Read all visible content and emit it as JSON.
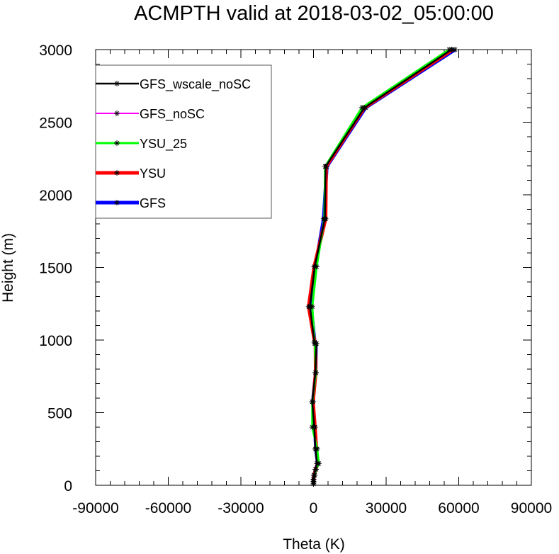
{
  "chart_data": {
    "type": "line",
    "title": "ACMPTH valid at 2018-03-02_05:00:00",
    "xlabel": "Theta (K)",
    "ylabel": "Height (m)",
    "xlim": [
      -90000,
      90000
    ],
    "ylim": [
      0,
      3000
    ],
    "x_ticks": [
      -90000,
      -60000,
      -30000,
      0,
      30000,
      60000,
      90000
    ],
    "y_ticks": [
      0,
      500,
      1000,
      1500,
      2000,
      2500,
      3000
    ],
    "x_tick_labels": [
      "-90000",
      "-60000",
      "-30000",
      "0",
      "30000",
      "60000",
      "90000"
    ],
    "y_tick_labels": [
      "0",
      "500",
      "1000",
      "1500",
      "2000",
      "2500",
      "3000"
    ],
    "legend_position": "top-left",
    "series": [
      {
        "name": "GFS_wscale_noSC",
        "color": "#000000",
        "width": 2.5,
        "x": [
          0,
          0,
          0,
          200,
          800,
          1500,
          800,
          300,
          -500,
          800,
          1200,
          400,
          -1500,
          500,
          4700,
          5000,
          21000,
          57000
        ],
        "y": [
          10,
          25,
          40,
          70,
          110,
          150,
          250,
          400,
          575,
          775,
          975,
          985,
          1230,
          1505,
          1835,
          2195,
          2600,
          3000
        ]
      },
      {
        "name": "GFS_noSC",
        "color": "#ff00ff",
        "width": 2,
        "x": [
          0,
          0,
          0,
          200,
          800,
          1500,
          800,
          300,
          -500,
          800,
          1200,
          400,
          -1500,
          500,
          4700,
          5000,
          21000,
          57000
        ],
        "y": [
          10,
          25,
          40,
          70,
          110,
          150,
          250,
          400,
          575,
          775,
          975,
          985,
          1230,
          1505,
          1835,
          2195,
          2600,
          3000
        ]
      },
      {
        "name": "YSU_25",
        "color": "#00ff00",
        "width": 3,
        "x": [
          0,
          0,
          0,
          500,
          1000,
          2200,
          1500,
          -500,
          -500,
          1000,
          500,
          400,
          -500,
          1300,
          4500,
          4800,
          20000,
          56000
        ],
        "y": [
          10,
          25,
          40,
          70,
          110,
          150,
          250,
          400,
          575,
          775,
          975,
          985,
          1230,
          1505,
          1835,
          2195,
          2600,
          3000
        ]
      },
      {
        "name": "YSU",
        "color": "#ff0000",
        "width": 5,
        "x": [
          0,
          0,
          0,
          300,
          900,
          1800,
          1200,
          600,
          -200,
          900,
          800,
          500,
          -2000,
          300,
          5000,
          5200,
          21000,
          57500
        ],
        "y": [
          10,
          25,
          40,
          70,
          110,
          150,
          250,
          400,
          575,
          775,
          975,
          985,
          1230,
          1505,
          1835,
          2195,
          2600,
          3000
        ]
      },
      {
        "name": "GFS",
        "color": "#0000ff",
        "width": 5,
        "x": [
          0,
          0,
          0,
          300,
          900,
          1700,
          1000,
          500,
          -300,
          900,
          1000,
          500,
          -1000,
          800,
          4200,
          5500,
          21500,
          58500
        ],
        "y": [
          10,
          25,
          40,
          70,
          110,
          150,
          250,
          400,
          575,
          775,
          975,
          985,
          1230,
          1505,
          1835,
          2195,
          2600,
          3000
        ]
      }
    ]
  }
}
